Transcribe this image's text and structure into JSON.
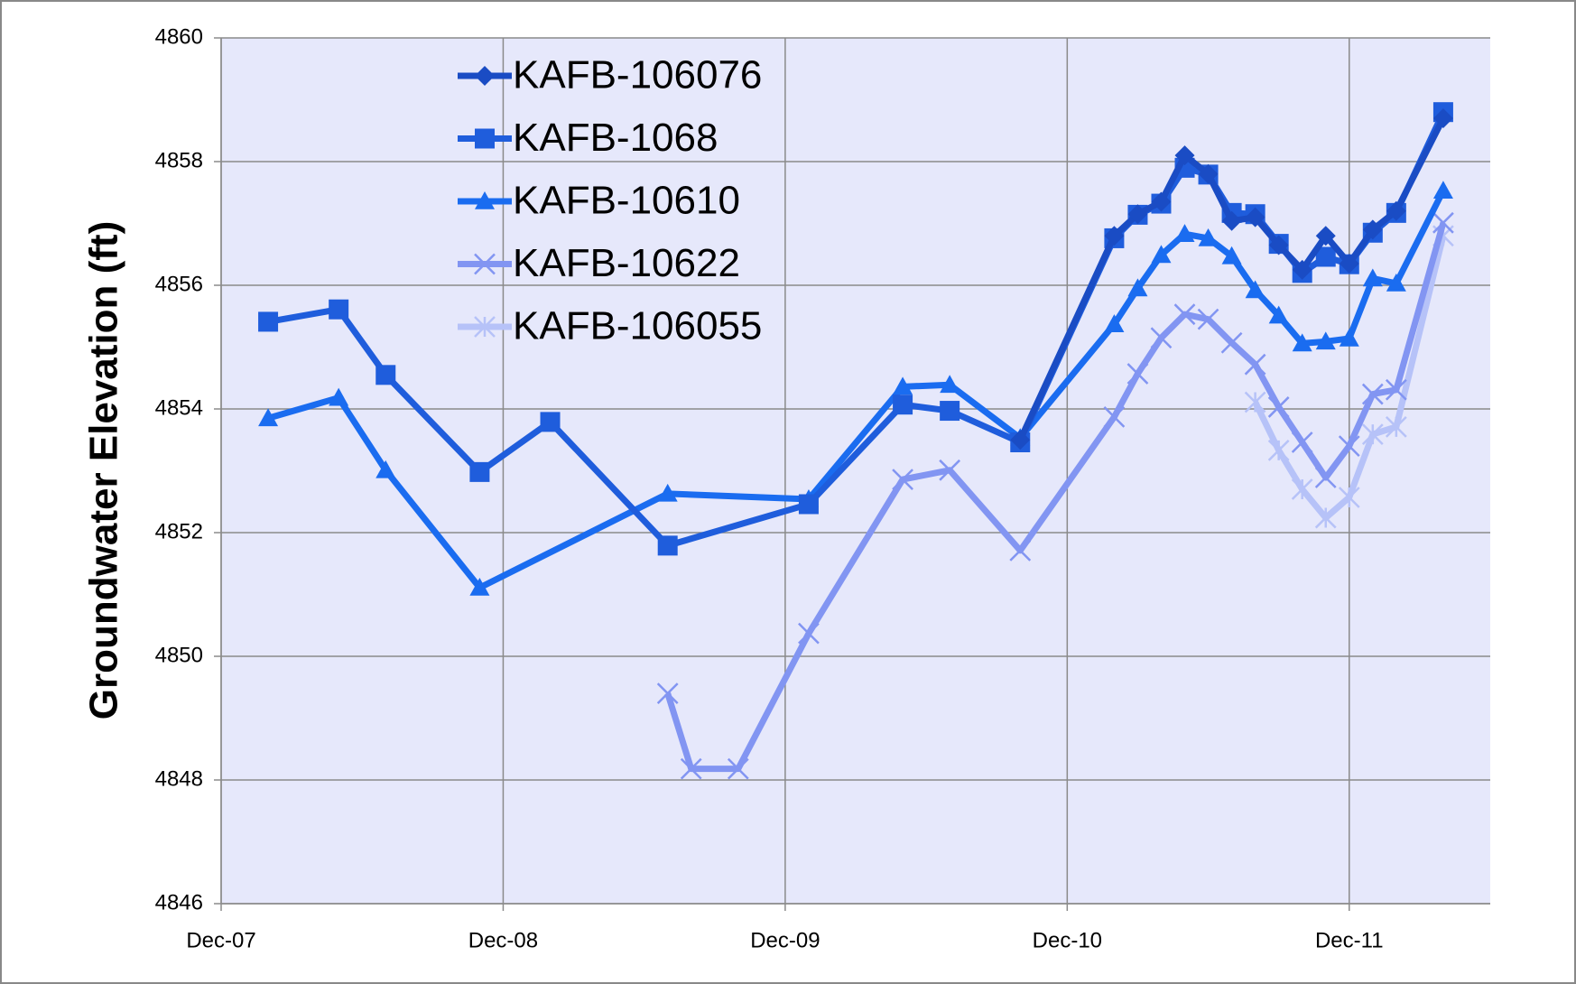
{
  "chart_data": {
    "type": "line",
    "ylabel": "Groundwater Elevation (ft)",
    "xlim": [
      "2007-12",
      "2012-06"
    ],
    "xticks": [
      {
        "value": "2007-12",
        "label": "Dec-07"
      },
      {
        "value": "2008-12",
        "label": "Dec-08"
      },
      {
        "value": "2009-12",
        "label": "Dec-09"
      },
      {
        "value": "2010-12",
        "label": "Dec-10"
      },
      {
        "value": "2011-12",
        "label": "Dec-11"
      }
    ],
    "ylim": [
      4846,
      4860
    ],
    "yticks": [
      4846,
      4848,
      4850,
      4852,
      4854,
      4856,
      4858,
      4860
    ],
    "grid": true,
    "series": [
      {
        "name": "KAFB-106076",
        "color": "#1a4cc4",
        "marker": "diamond",
        "x": [
          "2010-10",
          "2011-02",
          "2011-03",
          "2011-04",
          "2011-05",
          "2011-06",
          "2011-07",
          "2011-08",
          "2011-09",
          "2011-10",
          "2011-11",
          "2011-12",
          "2012-01",
          "2012-02",
          "2012-04"
        ],
        "values": [
          4853.5,
          4856.8,
          4857.15,
          4857.35,
          4858.1,
          4857.8,
          4857.04,
          4857.1,
          4856.65,
          4856.25,
          4856.8,
          4856.35,
          4856.9,
          4857.2,
          4858.7
        ]
      },
      {
        "name": "KAFB-1068",
        "color": "#1f5ddc",
        "marker": "square",
        "x": [
          "2008-02",
          "2008-05",
          "2008-07",
          "2008-11",
          "2009-02",
          "2009-07",
          "2010-01",
          "2010-05",
          "2010-07",
          "2010-10",
          "2011-02",
          "2011-03",
          "2011-04",
          "2011-05",
          "2011-06",
          "2011-07",
          "2011-08",
          "2011-09",
          "2011-10",
          "2011-11",
          "2011-12",
          "2012-01",
          "2012-02",
          "2012-04"
        ],
        "values": [
          4855.41,
          4855.61,
          4854.55,
          4852.98,
          4853.79,
          4851.79,
          4852.46,
          4854.07,
          4853.97,
          4853.46,
          4856.76,
          4857.14,
          4857.32,
          4857.9,
          4857.79,
          4857.17,
          4857.15,
          4856.67,
          4856.2,
          4856.46,
          4856.34,
          4856.85,
          4857.17,
          4858.8
        ]
      },
      {
        "name": "KAFB-10610",
        "color": "#1a6cf0",
        "marker": "triangle",
        "x": [
          "2008-02",
          "2008-05",
          "2008-07",
          "2008-11",
          "2009-07",
          "2010-01",
          "2010-05",
          "2010-07",
          "2010-10",
          "2011-02",
          "2011-03",
          "2011-04",
          "2011-05",
          "2011-06",
          "2011-07",
          "2011-08",
          "2011-09",
          "2011-10",
          "2011-11",
          "2011-12",
          "2012-01",
          "2012-02",
          "2012-04"
        ],
        "values": [
          4853.85,
          4854.18,
          4853.01,
          4851.11,
          4852.63,
          4852.54,
          4854.36,
          4854.39,
          4853.53,
          4855.37,
          4855.95,
          4856.49,
          4856.83,
          4856.76,
          4856.47,
          4855.92,
          4855.51,
          4855.06,
          4855.09,
          4855.14,
          4856.11,
          4856.03,
          4857.53
        ]
      },
      {
        "name": "KAFB-10622",
        "color": "#8295f2",
        "marker": "x",
        "x": [
          "2009-07",
          "2009-08",
          "2009-10",
          "2010-01",
          "2010-05",
          "2010-07",
          "2010-10",
          "2011-02",
          "2011-03",
          "2011-04",
          "2011-05",
          "2011-06",
          "2011-07",
          "2011-08",
          "2011-09",
          "2011-10",
          "2011-11",
          "2011-12",
          "2012-01",
          "2012-02",
          "2012-04"
        ],
        "values": [
          4849.4,
          4848.18,
          4848.18,
          4850.37,
          4852.86,
          4853.01,
          4851.71,
          4853.87,
          4854.57,
          4855.15,
          4855.53,
          4855.45,
          4855.07,
          4854.72,
          4854.03,
          4853.46,
          4852.89,
          4853.4,
          4854.24,
          4854.31,
          4857.01
        ]
      },
      {
        "name": "KAFB-106055",
        "color": "#b6c2f8",
        "marker": "star",
        "x": [
          "2011-08",
          "2011-09",
          "2011-10",
          "2011-11",
          "2011-12",
          "2012-01",
          "2012-02",
          "2012-04"
        ],
        "values": [
          4854.11,
          4853.33,
          4852.7,
          4852.24,
          4852.57,
          4853.59,
          4853.71,
          4856.8
        ]
      }
    ]
  }
}
